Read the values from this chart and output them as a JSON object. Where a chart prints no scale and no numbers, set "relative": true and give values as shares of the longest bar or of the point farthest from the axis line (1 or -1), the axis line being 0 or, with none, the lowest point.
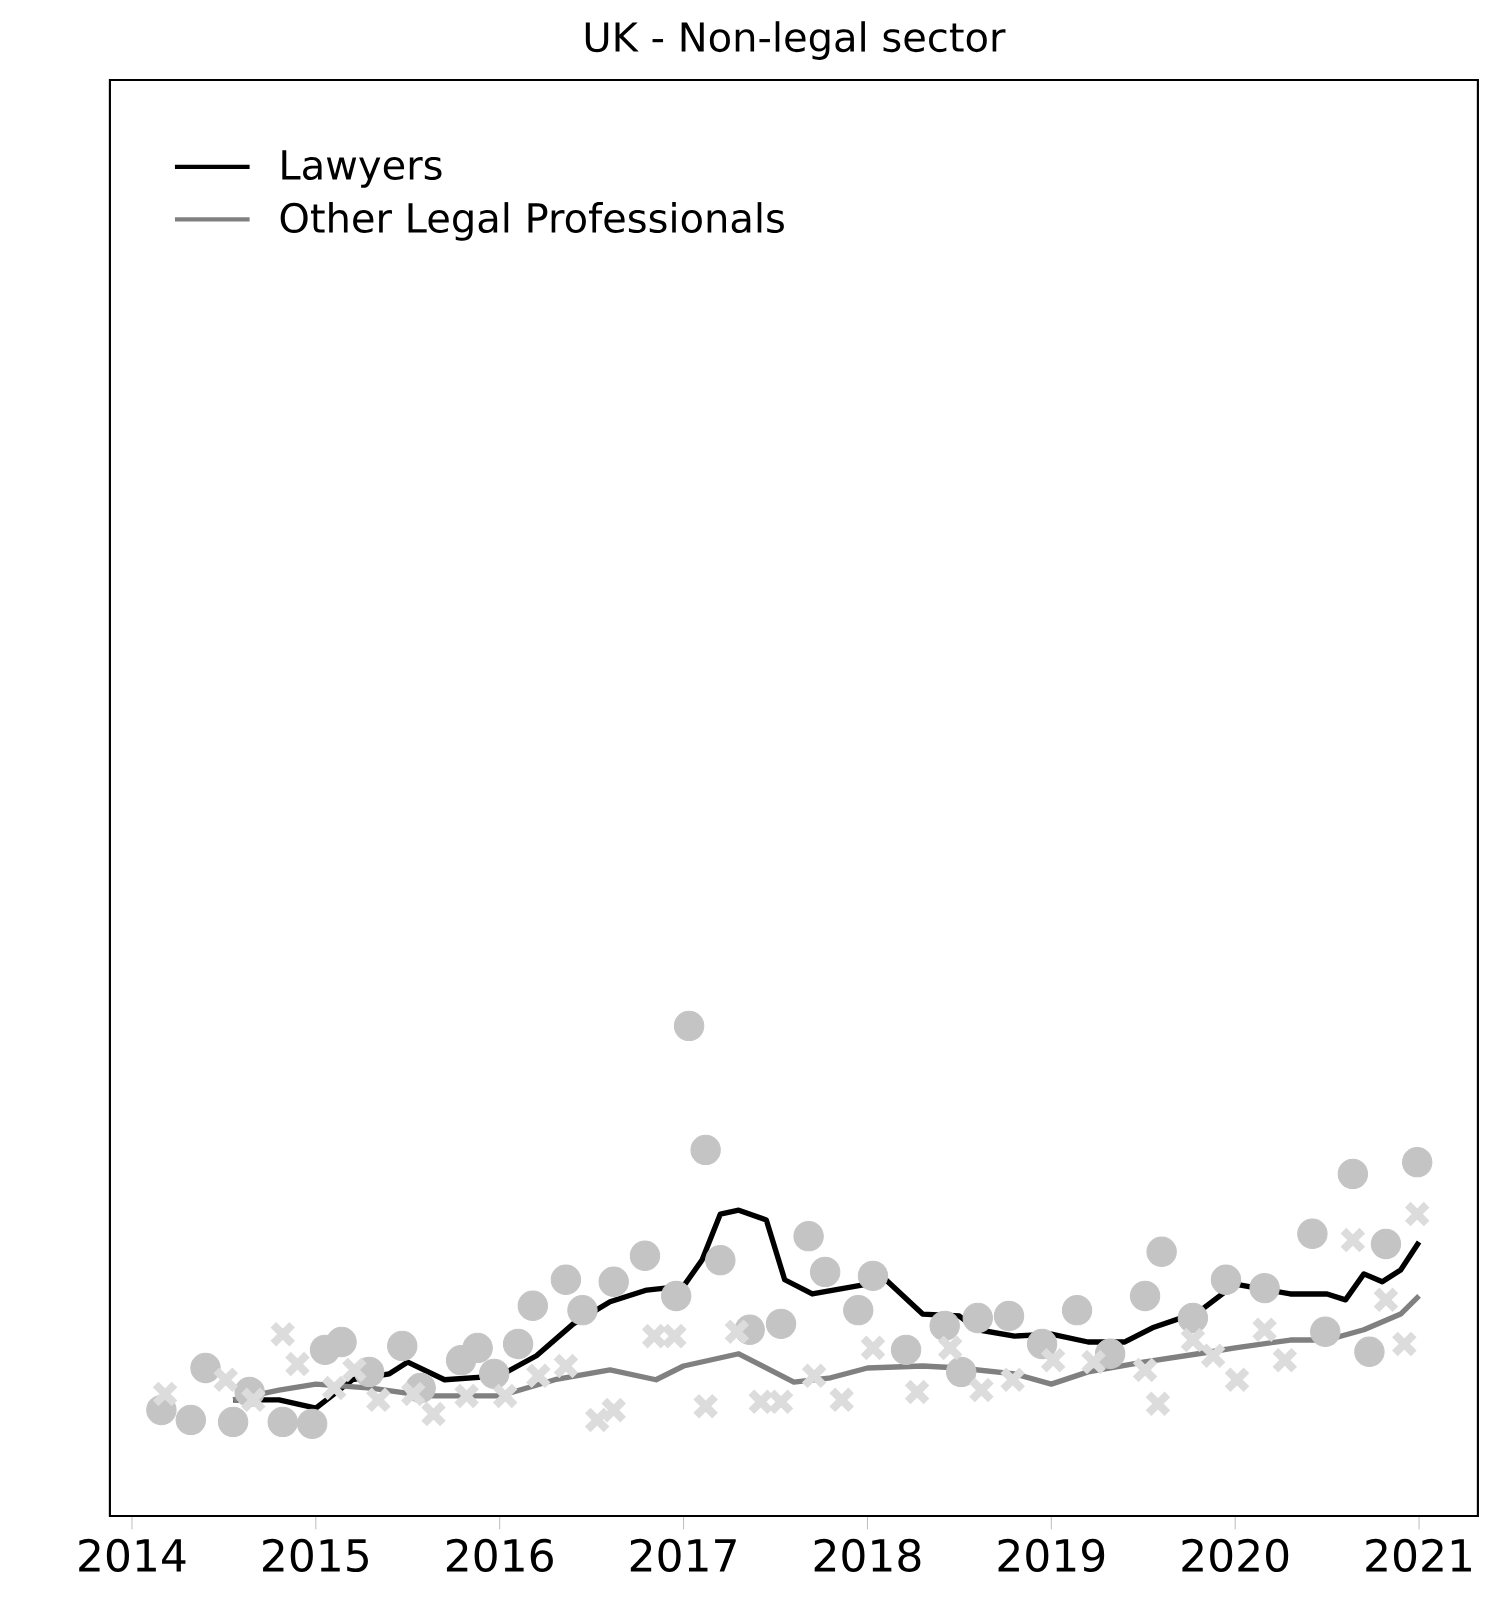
{
  "chart_data": {
    "type": "line",
    "title": "UK - Non-legal sector",
    "relative": true,
    "xlim": [
      2013.88,
      2021.32
    ],
    "xticks": [
      2014,
      2015,
      2016,
      2017,
      2018,
      2019,
      2020,
      2021
    ],
    "legend": "top left",
    "grid": false,
    "series": [
      {
        "type": "scatter",
        "marker": "circle",
        "color": "#c4c4c4",
        "x": [
          2014.16,
          2014.32,
          2014.4,
          2014.55,
          2014.64,
          2014.82,
          2014.98,
          2015.05,
          2015.14,
          2015.29,
          2015.47,
          2015.57,
          2015.79,
          2015.88,
          2015.97,
          2016.1,
          2016.18,
          2016.36,
          2016.45,
          2016.62,
          2016.79,
          2016.96,
          2017.03,
          2017.12,
          2017.2,
          2017.36,
          2017.53,
          2017.68,
          2017.77,
          2017.95,
          2018.03,
          2018.21,
          2018.42,
          2018.51,
          2018.6,
          2018.77,
          2018.95,
          2019.14,
          2019.32,
          2019.51,
          2019.6,
          2019.77,
          2019.95,
          2020.16,
          2020.42,
          2020.49,
          2020.64,
          2020.73,
          2020.82,
          2020.99
        ],
        "values": [
          0.216,
          0.196,
          0.302,
          0.192,
          0.253,
          0.192,
          0.188,
          0.339,
          0.355,
          0.294,
          0.347,
          0.261,
          0.318,
          0.343,
          0.29,
          0.351,
          0.429,
          0.482,
          0.42,
          0.478,
          0.531,
          0.449,
          1.0,
          0.747,
          0.522,
          0.38,
          0.392,
          0.571,
          0.498,
          0.42,
          0.49,
          0.339,
          0.388,
          0.294,
          0.404,
          0.408,
          0.351,
          0.42,
          0.331,
          0.449,
          0.539,
          0.404,
          0.482,
          0.465,
          0.576,
          0.376,
          0.698,
          0.335,
          0.555,
          0.722
        ]
      },
      {
        "type": "scatter",
        "marker": "cross",
        "color": "#dcdcdc",
        "x": [
          2014.18,
          2014.51,
          2014.66,
          2014.82,
          2014.9,
          2015.1,
          2015.21,
          2015.34,
          2015.53,
          2015.64,
          2015.82,
          2016.03,
          2016.21,
          2016.36,
          2016.53,
          2016.62,
          2016.84,
          2016.95,
          2017.12,
          2017.29,
          2017.42,
          2017.53,
          2017.71,
          2017.86,
          2018.03,
          2018.27,
          2018.45,
          2018.62,
          2018.79,
          2019.01,
          2019.23,
          2019.51,
          2019.58,
          2019.77,
          2019.88,
          2020.01,
          2020.16,
          2020.27,
          2020.64,
          2020.82,
          2020.92,
          2020.99
        ],
        "values": [
          0.249,
          0.278,
          0.237,
          0.371,
          0.31,
          0.261,
          0.298,
          0.237,
          0.249,
          0.208,
          0.245,
          0.245,
          0.286,
          0.306,
          0.196,
          0.216,
          0.367,
          0.367,
          0.224,
          0.376,
          0.233,
          0.233,
          0.286,
          0.237,
          0.343,
          0.253,
          0.343,
          0.257,
          0.278,
          0.318,
          0.314,
          0.298,
          0.229,
          0.359,
          0.327,
          0.278,
          0.38,
          0.318,
          0.563,
          0.441,
          0.351,
          0.616
        ]
      },
      {
        "name": "Lawyers",
        "color": "#000000",
        "x": [
          2014.55,
          2014.8,
          2015.0,
          2015.2,
          2015.4,
          2015.5,
          2015.7,
          2016.0,
          2016.2,
          2016.4,
          2016.6,
          2016.8,
          2017.0,
          2017.1,
          2017.2,
          2017.3,
          2017.45,
          2017.55,
          2017.7,
          2018.0,
          2018.1,
          2018.3,
          2018.5,
          2018.6,
          2018.8,
          2019.0,
          2019.2,
          2019.4,
          2019.55,
          2019.8,
          2020.0,
          2020.3,
          2020.5,
          2020.6,
          2020.7,
          2020.8,
          2020.9,
          2021.0
        ],
        "values": [
          0.237,
          0.237,
          0.22,
          0.278,
          0.29,
          0.314,
          0.278,
          0.286,
          0.327,
          0.392,
          0.437,
          0.461,
          0.469,
          0.522,
          0.616,
          0.624,
          0.604,
          0.482,
          0.453,
          0.473,
          0.482,
          0.412,
          0.408,
          0.38,
          0.367,
          0.371,
          0.355,
          0.355,
          0.384,
          0.416,
          0.473,
          0.453,
          0.453,
          0.441,
          0.494,
          0.478,
          0.502,
          0.559
        ]
      },
      {
        "name": "Other Legal Professionals",
        "color": "#808080",
        "x": [
          2014.55,
          2014.8,
          2015.0,
          2015.3,
          2015.6,
          2016.0,
          2016.3,
          2016.6,
          2016.85,
          2017.0,
          2017.3,
          2017.6,
          2017.8,
          2018.0,
          2018.3,
          2018.5,
          2018.8,
          2019.0,
          2019.2,
          2019.5,
          2019.8,
          2020.0,
          2020.3,
          2020.5,
          2020.7,
          2020.9,
          2021.0
        ],
        "values": [
          0.237,
          0.257,
          0.269,
          0.261,
          0.245,
          0.245,
          0.278,
          0.298,
          0.278,
          0.306,
          0.331,
          0.273,
          0.282,
          0.302,
          0.306,
          0.302,
          0.29,
          0.269,
          0.294,
          0.314,
          0.331,
          0.343,
          0.359,
          0.359,
          0.38,
          0.412,
          0.449
        ]
      }
    ]
  }
}
